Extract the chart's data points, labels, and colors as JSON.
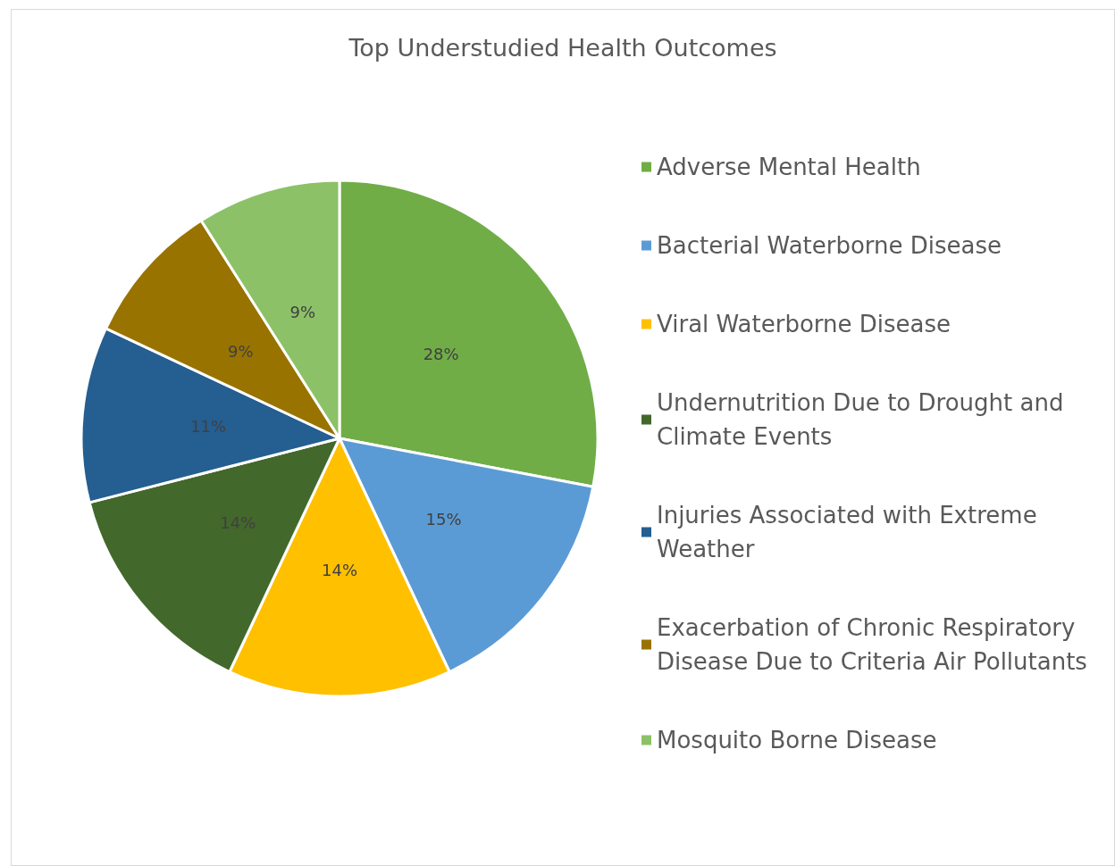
{
  "chart_data": {
    "type": "pie",
    "title": "Top Understudied Health Outcomes",
    "categories": [
      "Adverse Mental Health",
      "Bacterial Waterborne Disease",
      "Viral Waterborne Disease",
      "Undernutrition Due to Drought and Climate Events",
      "Injuries Associated with Extreme Weather",
      "Exacerbation of Chronic Respiratory Disease Due to Criteria Air Pollutants",
      "Mosquito Borne Disease"
    ],
    "values": [
      28,
      15,
      14,
      14,
      11,
      9,
      9
    ],
    "colors": [
      "#70ad47",
      "#5b9bd5",
      "#ffc000",
      "#43682b",
      "#255e91",
      "#997300",
      "#8cc168"
    ],
    "value_labels": [
      "28%",
      "15%",
      "14%",
      "14%",
      "11%",
      "9%",
      "9%"
    ],
    "legend": "right"
  }
}
